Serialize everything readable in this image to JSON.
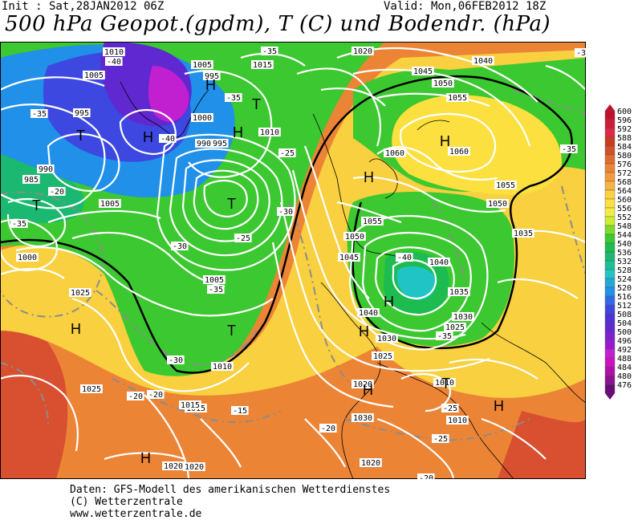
{
  "header": {
    "init": "Init : Sat,28JAN2012 06Z",
    "valid": "Valid: Mon,06FEB2012 18Z",
    "title": "500 hPa Geopot.(gpdm), T (C) und Bodendr. (hPa)"
  },
  "scale": {
    "values": [
      "600",
      "596",
      "592",
      "588",
      "584",
      "580",
      "576",
      "572",
      "568",
      "564",
      "560",
      "556",
      "552",
      "548",
      "544",
      "540",
      "536",
      "532",
      "528",
      "524",
      "520",
      "516",
      "512",
      "508",
      "504",
      "500",
      "496",
      "492",
      "488",
      "484",
      "480",
      "476"
    ],
    "colors": [
      "#c01030",
      "#d01a3a",
      "#e0284a",
      "#c83c20",
      "#d4502a",
      "#e06a30",
      "#ec8436",
      "#f49a3c",
      "#f8b440",
      "#fcd040",
      "#fce040",
      "#f4ec44",
      "#ccee30",
      "#7cdc2c",
      "#3cc830",
      "#1cbc50",
      "#1ab870",
      "#18c098",
      "#20c4c4",
      "#22a8d8",
      "#2090e8",
      "#3068e8",
      "#3c48e0",
      "#4c30d8",
      "#6028d0",
      "#7c20d0",
      "#9c18d0",
      "#c020d0",
      "#d010c0",
      "#b010a8",
      "#8c1090",
      "#6a0c78"
    ]
  },
  "map": {
    "pressure_labels": [
      "1010",
      "1005",
      "1015",
      "1020",
      "1040",
      "1045",
      "1050",
      "1055",
      "995",
      "1000",
      "1005",
      "1010",
      "995",
      "985",
      "990",
      "995",
      "990",
      "1005",
      "1000",
      "1005",
      "1010",
      "1015",
      "1020",
      "1025",
      "1060",
      "1060",
      "1055",
      "1050",
      "1055",
      "1050",
      "1045",
      "1040",
      "1035",
      "1040",
      "1035",
      "1030",
      "1025",
      "1030",
      "1025",
      "1020",
      "1010",
      "1015",
      "1020",
      "1025",
      "1030",
      "1010",
      "1020"
    ],
    "temp_labels": [
      "-40",
      "-35",
      "-35",
      "-40",
      "-35",
      "-30",
      "-25",
      "-20",
      "-35",
      "-30",
      "-35",
      "-25",
      "-20",
      "-15",
      "-20",
      "-25",
      "-20",
      "-35",
      "-40",
      "-30",
      "-35",
      "-25",
      "-20",
      "-35"
    ],
    "pressure_centers": [
      "H",
      "T",
      "H",
      "H",
      "T",
      "T",
      "H",
      "H",
      "H",
      "T",
      "H",
      "H",
      "T",
      "H",
      "H",
      "T",
      "H"
    ]
  },
  "footer": {
    "line1": "Daten: GFS-Modell des amerikanischen Wetterdienstes",
    "line2": "(C) Wetterzentrale",
    "line3": "www.wetterzentrale.de"
  }
}
